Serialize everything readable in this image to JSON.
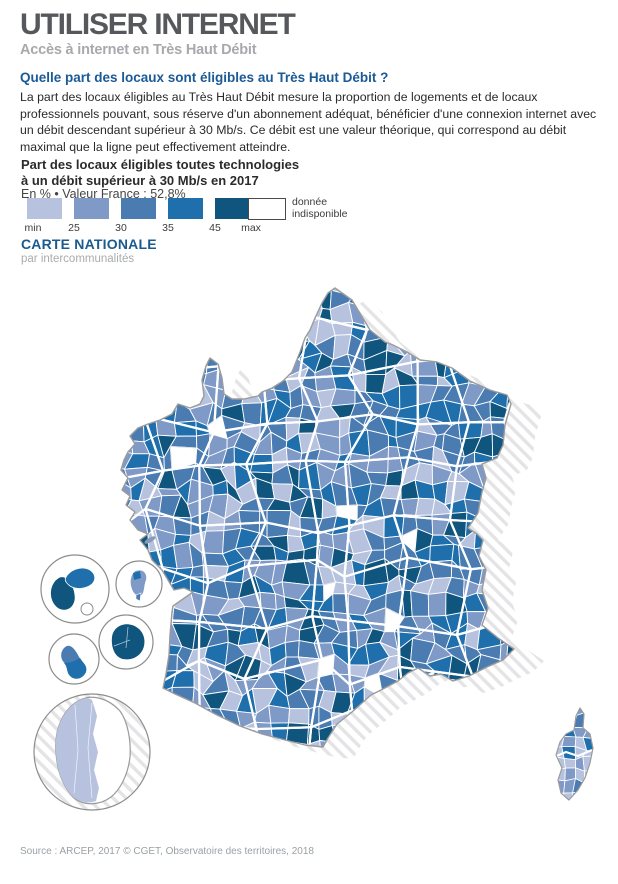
{
  "header": {
    "title": "UTILISER INTERNET",
    "subtitle": "Accès à internet en Très Haut Débit"
  },
  "intro": {
    "question": "Quelle part des locaux sont éligibles au Très Haut Débit ?",
    "body": "La part des locaux éligibles au Très Haut Débit mesure la proportion de logements et de locaux professionnels pouvant, sous réserve d'un abonnement adéquat, bénéficier d'une connexion internet avec un débit descendant supérieur à 30 Mb/s. Ce débit est une valeur théorique, qui correspond au débit maximal que la ligne peut effectivement atteindre."
  },
  "legend": {
    "title_line1": "Part des locaux éligibles toutes technologies",
    "title_line2": "à un débit supérieur à 30 Mb/s en 2017",
    "unit_line": "En % • Valeur France : 52,8%",
    "scale_labels": [
      "min",
      "25",
      "30",
      "35",
      "45",
      "max"
    ],
    "colors": [
      "#b7c3de",
      "#7f9ac7",
      "#4a7cb2",
      "#1e6fab",
      "#0f557e"
    ],
    "no_data_label": "donnée indisponible",
    "no_data_color": "#ffffff"
  },
  "map": {
    "heading": "CARTE NATIONALE",
    "subheading": "par intercommunalités",
    "outline_color": "#9b9b9b",
    "cell_border_color": "#ffffff",
    "hatch_color": "#e4e4e6"
  },
  "footer": {
    "source": "Source : ARCEP, 2017 © CGET, Observatoire des territoires, 2018"
  }
}
